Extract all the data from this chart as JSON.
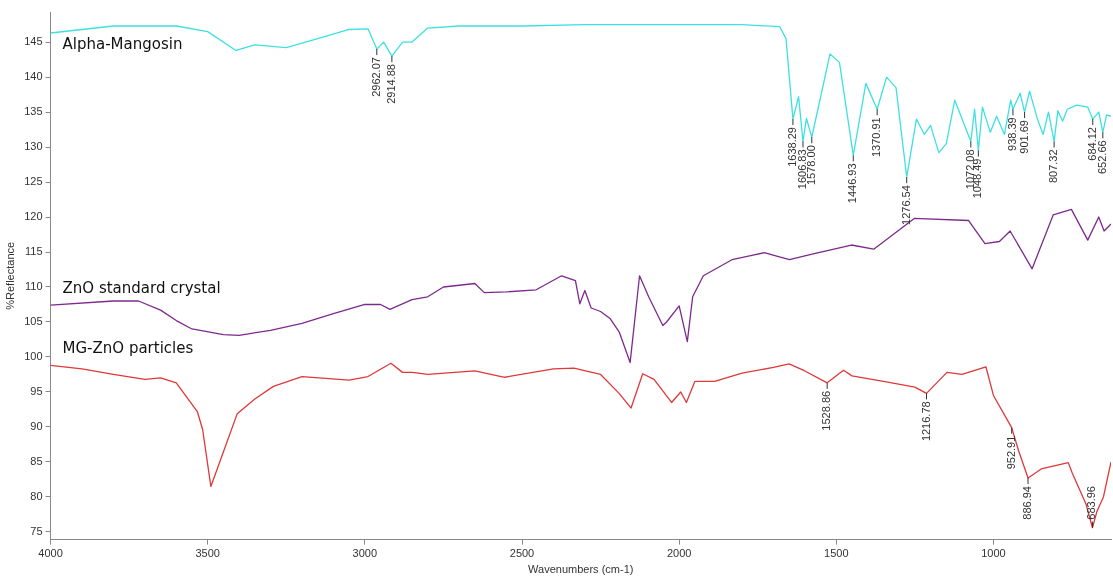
{
  "chart_data": {
    "type": "line",
    "xlabel": "Wavenumbers (cm-1)",
    "ylabel": "%Reflectance",
    "xlim": [
      4000,
      626
    ],
    "ylim": [
      73.9,
      149.3
    ],
    "xticks": [
      4000,
      3500,
      3000,
      2500,
      2000,
      1500,
      1000
    ],
    "yticks": [
      75,
      80,
      85,
      90,
      95,
      100,
      105,
      110,
      115,
      120,
      125,
      130,
      135,
      140,
      145
    ],
    "legend": false,
    "grid": false,
    "series": [
      {
        "name": "Alpha-Mangosin",
        "color": "#3ee0e0",
        "x": [
          4000,
          3800,
          3600,
          3500,
          3410,
          3350,
          3250,
          3150,
          3050,
          2990,
          2962,
          2940,
          2914,
          2880,
          2850,
          2800,
          2700,
          2500,
          2300,
          2000,
          1800,
          1680,
          1660,
          1638,
          1620,
          1606,
          1595,
          1578,
          1520,
          1490,
          1446,
          1406,
          1370,
          1340,
          1310,
          1276,
          1245,
          1220,
          1200,
          1174,
          1150,
          1123,
          1072,
          1060,
          1048,
          1035,
          1010,
          990,
          965,
          945,
          938,
          915,
          901,
          885,
          860,
          842,
          825,
          807,
          795,
          780,
          765,
          735,
          700,
          684,
          665,
          652,
          640,
          626
        ],
        "values": [
          146.3,
          147.3,
          147.3,
          146.5,
          143.8,
          144.6,
          144.2,
          145.5,
          146.8,
          146.9,
          144.0,
          145.0,
          143.0,
          145.0,
          145.0,
          147.0,
          147.3,
          147.3,
          147.5,
          147.5,
          147.5,
          147.2,
          145.5,
          134.0,
          137.2,
          130.8,
          134.1,
          131.4,
          143.3,
          142.1,
          128.8,
          139.1,
          135.4,
          140.0,
          138.5,
          125.7,
          134.0,
          131.8,
          133.1,
          129.2,
          130.5,
          136.7,
          130.8,
          135.4,
          129.5,
          135.7,
          132.1,
          134.4,
          131.8,
          136.7,
          135.4,
          137.7,
          135.0,
          138.0,
          134.0,
          131.8,
          135.0,
          130.8,
          135.2,
          133.7,
          135.4,
          136.0,
          135.7,
          134.0,
          135.0,
          132.1,
          134.6,
          134.4
        ]
      },
      {
        "name": "ZnO standard crystal",
        "color": "#7d2a8c",
        "x": [
          4000,
          3800,
          3720,
          3650,
          3600,
          3550,
          3450,
          3400,
          3300,
          3200,
          3100,
          3000,
          2950,
          2920,
          2850,
          2800,
          2750,
          2650,
          2620,
          2550,
          2455,
          2374,
          2330,
          2316,
          2300,
          2280,
          2250,
          2220,
          2190,
          2156,
          2126,
          2097,
          2052,
          2040,
          2000,
          1974,
          1957,
          1923,
          1832,
          1729,
          1649,
          1577,
          1452,
          1381,
          1252,
          1079,
          1027,
          981,
          947,
          877,
          810,
          752,
          700,
          665,
          648,
          626
        ],
        "values": [
          107.4,
          108.0,
          108.0,
          106.7,
          105.2,
          104.0,
          103.2,
          103.1,
          103.8,
          104.8,
          106.2,
          107.5,
          107.5,
          106.8,
          108.2,
          108.6,
          110.0,
          110.5,
          109.2,
          109.3,
          109.6,
          111.6,
          110.9,
          107.6,
          109.5,
          107.0,
          106.5,
          105.5,
          103.5,
          99.2,
          111.6,
          108.6,
          104.5,
          105.0,
          107.3,
          102.2,
          108.6,
          111.6,
          113.9,
          114.9,
          113.9,
          114.7,
          116.0,
          115.4,
          119.8,
          119.5,
          116.2,
          116.5,
          118.0,
          112.6,
          120.3,
          121.1,
          116.7,
          120.0,
          118.0,
          119.0
        ]
      },
      {
        "name": "MG-ZnO particles",
        "color": "#e03838",
        "x": [
          4000,
          3900,
          3800,
          3700,
          3650,
          3600,
          3533,
          3516,
          3490,
          3447,
          3406,
          3350,
          3291,
          3200,
          3050,
          2990,
          2917,
          2880,
          2848,
          2800,
          2650,
          2555,
          2400,
          2335,
          2250,
          2191,
          2153,
          2116,
          2080,
          2024,
          1995,
          1977,
          1950,
          1887,
          1800,
          1700,
          1650,
          1600,
          1529,
          1477,
          1450,
          1350,
          1250,
          1213,
          1148,
          1100,
          1024,
          1000,
          942,
          920,
          890,
          848,
          762,
          750,
          705,
          685,
          671,
          650,
          626
        ],
        "values": [
          98.8,
          98.3,
          97.5,
          96.8,
          97.0,
          96.3,
          92.2,
          89.6,
          81.5,
          86.8,
          91.9,
          94.0,
          95.8,
          97.2,
          96.7,
          97.2,
          99.1,
          97.8,
          97.8,
          97.5,
          98.0,
          97.1,
          98.3,
          98.4,
          97.5,
          94.8,
          92.7,
          97.6,
          96.8,
          93.5,
          95.0,
          93.5,
          96.5,
          96.5,
          97.7,
          98.5,
          99.0,
          98.0,
          96.3,
          98.1,
          97.3,
          96.5,
          95.7,
          94.8,
          97.8,
          97.5,
          98.6,
          94.5,
          89.9,
          86.6,
          82.7,
          84.0,
          84.9,
          83.5,
          78.9,
          75.6,
          77.9,
          80.0,
          85.0
        ]
      }
    ],
    "annotations": [
      {
        "text": "2962.07",
        "x": 2962,
        "y": 144.0
      },
      {
        "text": "2914.88",
        "x": 2914,
        "y": 143.0
      },
      {
        "text": "1638.29",
        "x": 1638,
        "y": 134.0
      },
      {
        "text": "1606.83",
        "x": 1606,
        "y": 130.8
      },
      {
        "text": "1578.00",
        "x": 1578,
        "y": 131.4
      },
      {
        "text": "1446.93",
        "x": 1446,
        "y": 128.8
      },
      {
        "text": "1370.91",
        "x": 1370,
        "y": 135.4
      },
      {
        "text": "1276.54",
        "x": 1276,
        "y": 125.7
      },
      {
        "text": "1072.08",
        "x": 1072,
        "y": 130.8
      },
      {
        "text": "1048.49",
        "x": 1048,
        "y": 129.5
      },
      {
        "text": "938.39",
        "x": 938,
        "y": 135.4
      },
      {
        "text": "901.69",
        "x": 901,
        "y": 135.0
      },
      {
        "text": "807.32",
        "x": 807,
        "y": 130.8
      },
      {
        "text": "684.12",
        "x": 684,
        "y": 134.0
      },
      {
        "text": "652.66",
        "x": 652,
        "y": 132.1
      },
      {
        "text": "1528.86",
        "x": 1529,
        "y": 96.3
      },
      {
        "text": "1216.78",
        "x": 1213,
        "y": 94.8
      },
      {
        "text": "952.91",
        "x": 942,
        "y": 89.9
      },
      {
        "text": "886.94",
        "x": 890,
        "y": 82.7
      },
      {
        "text": "683.96",
        "x": 685,
        "y": 75.6
      }
    ]
  }
}
